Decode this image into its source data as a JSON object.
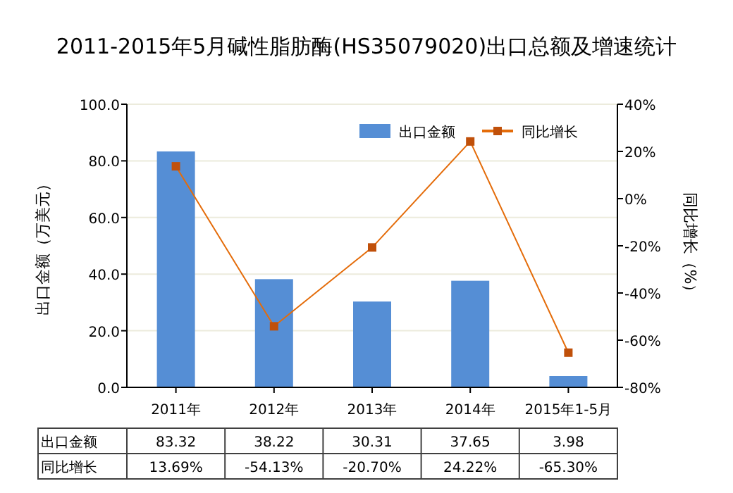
{
  "chart_data": {
    "type": "bar",
    "title": "2011-2015年5月碱性脂肪酶(HS35079020)出口总额及增速统计",
    "ylabel": "出口金额（万美元）",
    "y2label": "同比增长（%）",
    "categories": [
      "2011年",
      "2012年",
      "2013年",
      "2014年",
      "2015年1-5月"
    ],
    "series": [
      {
        "name": "出口金额",
        "color": "#558ed5",
        "values": [
          83.32,
          38.22,
          30.31,
          37.65,
          3.98
        ],
        "value_labels": [
          "83.32",
          "38.22",
          "30.31",
          "37.65",
          "3.98"
        ]
      },
      {
        "name": "同比增长",
        "type": "line",
        "axis": "y2",
        "color": "#e46c0a",
        "marker": "square",
        "values": [
          13.69,
          -54.13,
          -20.7,
          24.22,
          -65.3
        ],
        "value_labels": [
          "13.69%",
          "-54.13%",
          "-20.70%",
          "24.22%",
          "-65.30%"
        ]
      }
    ],
    "ylim": [
      0,
      100
    ],
    "yticks": [
      {
        "value": 0,
        "label": "0.0"
      },
      {
        "value": 20,
        "label": "20.0"
      },
      {
        "value": 40,
        "label": "40.0"
      },
      {
        "value": 60,
        "label": "60.0"
      },
      {
        "value": 80,
        "label": "80.0"
      },
      {
        "value": 100,
        "label": "100.0"
      }
    ],
    "y2lim": [
      -80,
      40
    ],
    "y2ticks": [
      {
        "value": -80,
        "label": "-80%"
      },
      {
        "value": -60,
        "label": "-60%"
      },
      {
        "value": -40,
        "label": "-40%"
      },
      {
        "value": -20,
        "label": "-20%"
      },
      {
        "value": 0,
        "label": "0%"
      },
      {
        "value": 20,
        "label": "20%"
      },
      {
        "value": 40,
        "label": "40%"
      }
    ],
    "grid": "y",
    "legend": "top right"
  }
}
